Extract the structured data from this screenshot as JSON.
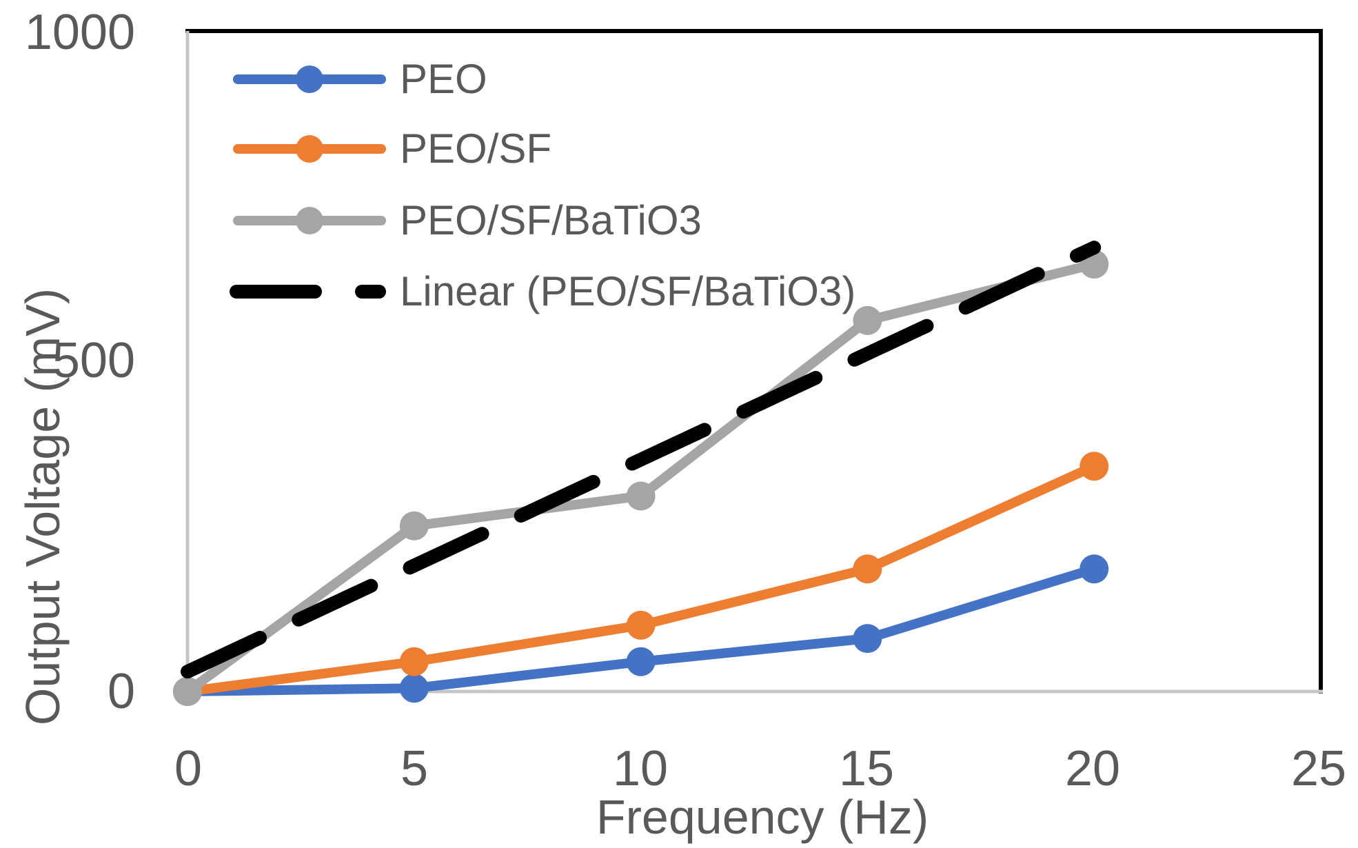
{
  "chart_data": {
    "type": "line",
    "title": "",
    "xlabel": "Frequency (Hz)",
    "ylabel": "Output Voltage (mV)",
    "x": [
      0,
      5,
      10,
      15,
      20
    ],
    "series": [
      {
        "name": "PEO",
        "color": "#4472C4",
        "values": [
          0,
          5,
          45,
          80,
          185
        ]
      },
      {
        "name": "PEO/SF",
        "color": "#ED7D31",
        "values": [
          0,
          45,
          100,
          185,
          340
        ]
      },
      {
        "name": "PEO/SF/BaTiO3",
        "color": "#A5A5A5",
        "values": [
          0,
          250,
          295,
          560,
          645
        ]
      }
    ],
    "trendline": {
      "name": "Linear (PEO/SF/BaTiO3)",
      "color": "#000000",
      "style": "dashed",
      "slope": 32,
      "intercept": 30,
      "x_range": [
        0,
        20
      ]
    },
    "xlim": [
      0,
      25
    ],
    "ylim": [
      0,
      1000
    ],
    "x_ticks": [
      "0",
      "5",
      "10",
      "15",
      "20",
      "25"
    ],
    "y_ticks": [
      "0",
      "500",
      "1000"
    ],
    "grid": false,
    "legend_position": "inside-top-left",
    "axis_line_color": "#C6C6C6",
    "border_color": "#000000",
    "text_color": "#595959"
  }
}
